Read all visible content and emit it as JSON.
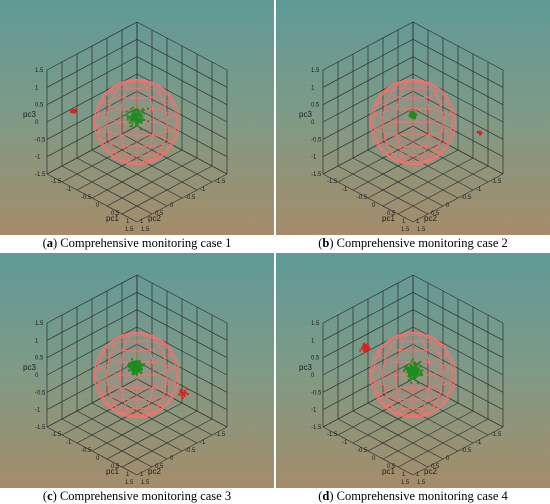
{
  "panels": [
    {
      "label": "a",
      "caption": "Comprehensive monitoring case 1",
      "chart_data": {
        "type": "scatter",
        "xlabel": "pc1",
        "ylabel": "pc2",
        "zlabel": "pc3",
        "xlim": [
          -1.5,
          1.5
        ],
        "ylim": [
          -1.5,
          1.5
        ],
        "zlim": [
          -1.5,
          1.5
        ],
        "tick_labels": [
          "-1.5",
          "-1",
          "-0.5",
          "0",
          "0.5",
          "1",
          "1.5"
        ],
        "grid": true,
        "control_limit": {
          "shape": "sphere",
          "center": [
            0,
            0,
            0
          ],
          "radius": 1.0
        },
        "series": [
          {
            "color": "#1e8c1e",
            "center": [
              0.0,
              0.05,
              0.15
            ],
            "spread": 0.3,
            "count": 120
          },
          {
            "color": "#e02020",
            "center": [
              -1.55,
              0.55,
              -0.15
            ],
            "spread": 0.1,
            "count": 18
          }
        ]
      }
    },
    {
      "label": "b",
      "caption": "Comprehensive monitoring case 2",
      "chart_data": {
        "type": "scatter",
        "xlabel": "pc1",
        "ylabel": "pc2",
        "zlabel": "pc3",
        "xlim": [
          -1.5,
          1.5
        ],
        "ylim": [
          -1.5,
          1.5
        ],
        "zlim": [
          -1.5,
          1.5
        ],
        "tick_labels": [
          "-1.5",
          "-1",
          "-0.5",
          "0",
          "0.5",
          "1",
          "1.5"
        ],
        "grid": true,
        "control_limit": {
          "shape": "sphere",
          "center": [
            0,
            0,
            0
          ],
          "radius": 1.0
        },
        "series": [
          {
            "color": "#1e8c1e",
            "center": [
              0.0,
              0.0,
              0.2
            ],
            "spread": 0.1,
            "count": 120
          },
          {
            "color": "#e02020",
            "center": [
              1.35,
              -0.9,
              -0.1
            ],
            "spread": 0.08,
            "count": 14
          }
        ]
      }
    },
    {
      "label": "c",
      "caption": "Comprehensive monitoring case 3",
      "chart_data": {
        "type": "scatter",
        "xlabel": "pc1",
        "ylabel": "pc2",
        "zlabel": "pc3",
        "xlim": [
          -1.5,
          1.5
        ],
        "ylim": [
          -1.5,
          1.5
        ],
        "zlim": [
          -1.5,
          1.5
        ],
        "tick_labels": [
          "-1.5",
          "-1",
          "-0.5",
          "0",
          "0.5",
          "1",
          "1.5"
        ],
        "grid": true,
        "control_limit": {
          "shape": "sphere",
          "center": [
            0,
            0,
            0
          ],
          "radius": 1.0
        },
        "series": [
          {
            "color": "#1e8c1e",
            "center": [
              -0.05,
              0.0,
              0.2
            ],
            "spread": 0.22,
            "count": 220
          },
          {
            "color": "#e02020",
            "center": [
              0.7,
              -0.85,
              -0.6
            ],
            "spread": 0.15,
            "count": 22
          }
        ]
      }
    },
    {
      "label": "d",
      "caption": "Comprehensive monitoring case 4",
      "chart_data": {
        "type": "scatter",
        "xlabel": "pc1",
        "ylabel": "pc2",
        "zlabel": "pc3",
        "xlim": [
          -1.5,
          1.5
        ],
        "ylim": [
          -1.5,
          1.5
        ],
        "zlim": [
          -1.5,
          1.5
        ],
        "tick_labels": [
          "-1.5",
          "-1",
          "-0.5",
          "0",
          "0.5",
          "1",
          "1.5"
        ],
        "grid": true,
        "control_limit": {
          "shape": "sphere",
          "center": [
            0,
            0,
            0
          ],
          "radius": 1.0
        },
        "series": [
          {
            "color": "#1e8c1e",
            "center": [
              0.0,
              0.0,
              0.1
            ],
            "spread": 0.3,
            "count": 150
          },
          {
            "color": "#e02020",
            "center": [
              -0.9,
              0.7,
              0.7
            ],
            "spread": 0.12,
            "count": 40
          }
        ]
      }
    }
  ]
}
